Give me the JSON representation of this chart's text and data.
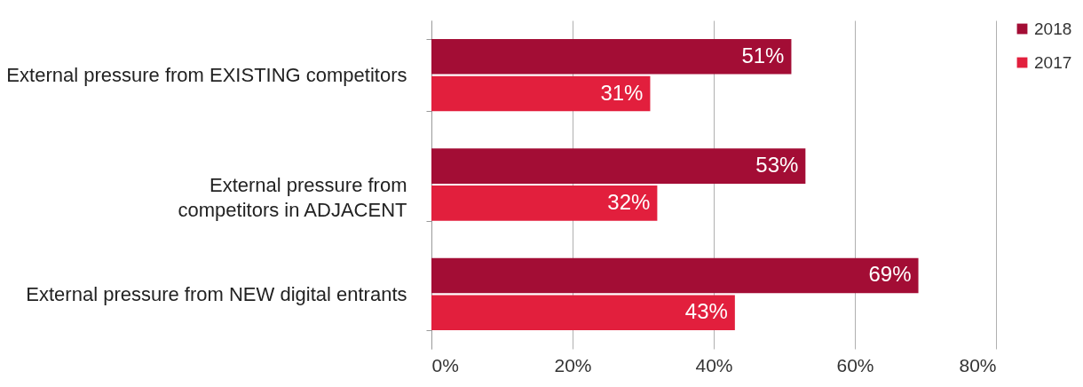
{
  "chart_data": {
    "type": "bar",
    "orientation": "horizontal",
    "categories": [
      "External pressure from EXISTING competitors",
      "External pressure from\ncompetitors in ADJACENT",
      "External pressure from NEW digital entrants"
    ],
    "series": [
      {
        "name": "2018",
        "color": "#a30d35",
        "values": [
          51,
          53,
          69
        ]
      },
      {
        "name": "2017",
        "color": "#e21f3d",
        "values": [
          31,
          32,
          43
        ]
      }
    ],
    "xlim": [
      0,
      80
    ],
    "xticks": [
      {
        "value": 0,
        "label": "0%"
      },
      {
        "value": 20,
        "label": "20%"
      },
      {
        "value": 40,
        "label": "40%"
      },
      {
        "value": 60,
        "label": "60%"
      },
      {
        "value": 80,
        "label": "80%"
      }
    ],
    "value_labels": [
      [
        "51%",
        "53%",
        "69%"
      ],
      [
        "31%",
        "32%",
        "43%"
      ]
    ],
    "grid": "x",
    "legend": "right"
  }
}
